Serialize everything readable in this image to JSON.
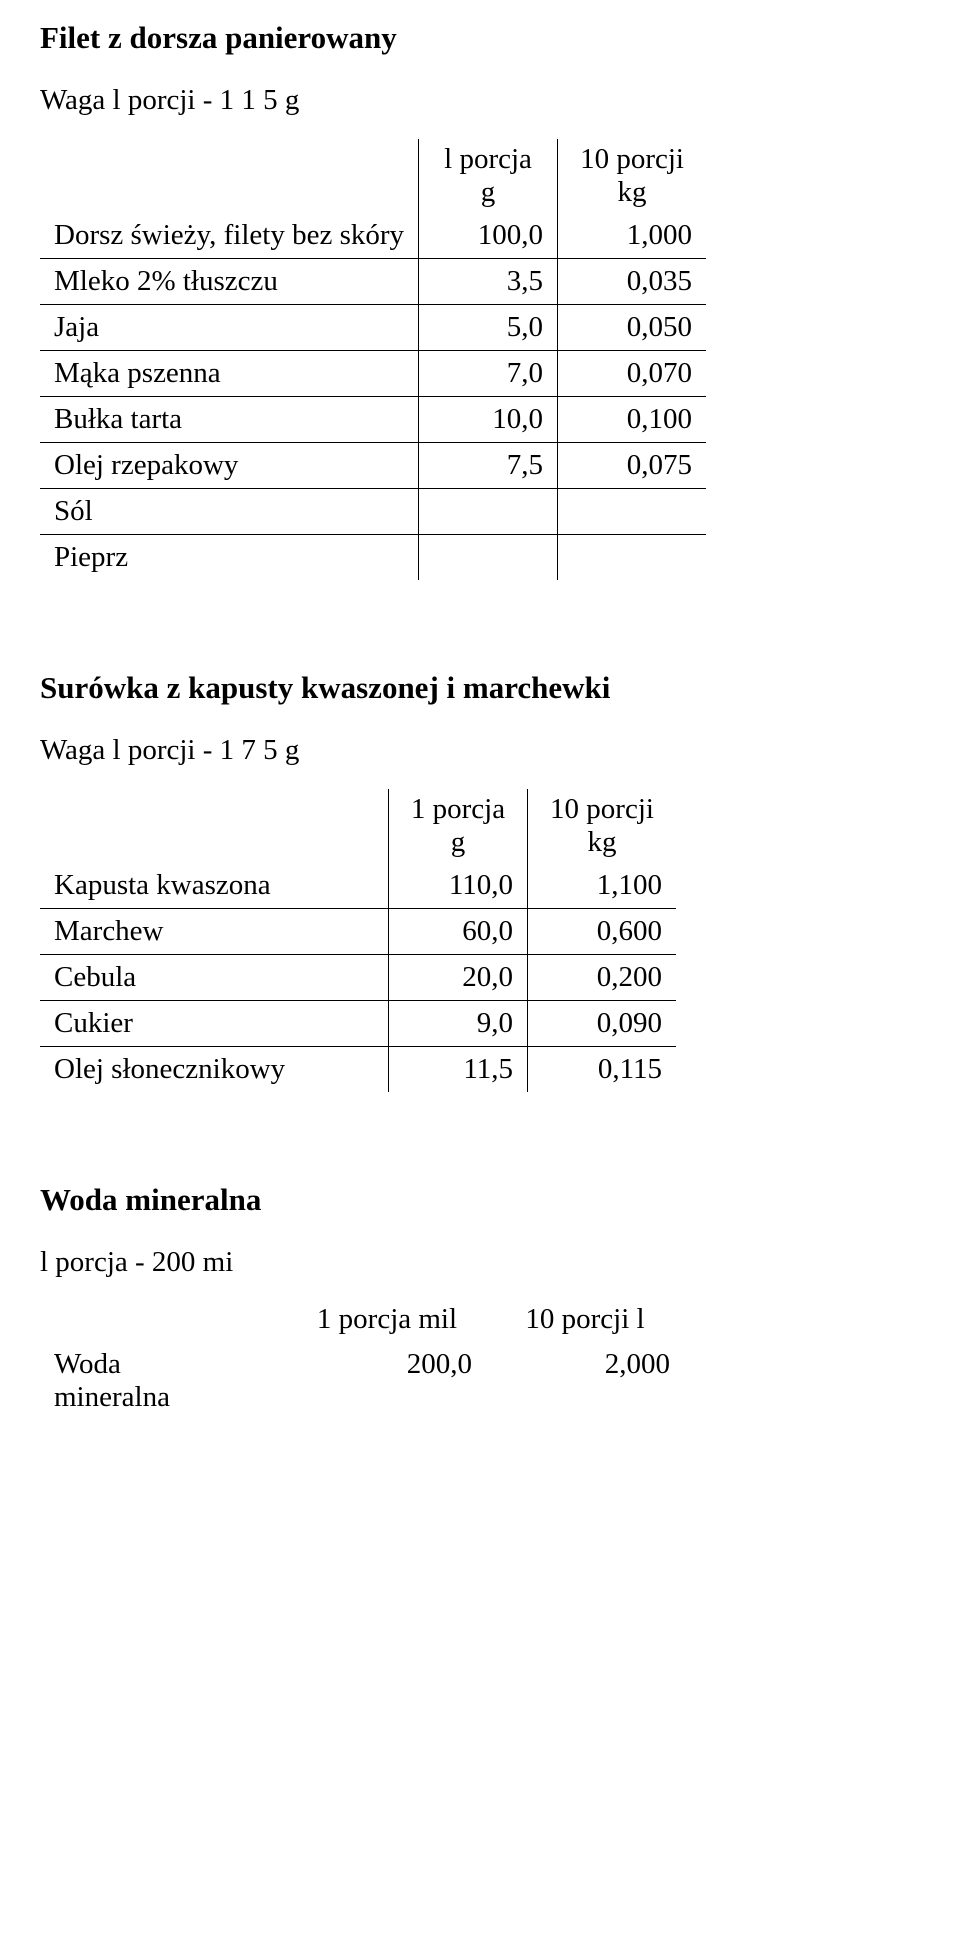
{
  "recipe1": {
    "title": "Filet z dorsza panierowany",
    "portion_weight": "Waga l porcji - 1 1 5 g",
    "header_col1_line1": "l porcja",
    "header_col1_line2": "g",
    "header_col2_line1": "10 porcji",
    "header_col2_line2": "kg",
    "rows": [
      {
        "name": "Dorsz świeży, filety bez skóry",
        "v1": "100,0",
        "v2": "1,000"
      },
      {
        "name": "Mleko 2% tłuszczu",
        "v1": "3,5",
        "v2": "0,035"
      },
      {
        "name": "Jaja",
        "v1": "5,0",
        "v2": "0,050"
      },
      {
        "name": "Mąka pszenna",
        "v1": "7,0",
        "v2": "0,070"
      },
      {
        "name": "Bułka tarta",
        "v1": "10,0",
        "v2": "0,100"
      },
      {
        "name": "Olej rzepakowy",
        "v1": "7,5",
        "v2": "0,075"
      },
      {
        "name": "Sól",
        "v1": "",
        "v2": ""
      },
      {
        "name": "Pieprz",
        "v1": "",
        "v2": ""
      }
    ]
  },
  "recipe2": {
    "title": "Surówka z kapusty kwaszonej i marchewki",
    "portion_weight": "Waga l porcji - 1 7 5 g",
    "header_col1_line1": "1 porcja",
    "header_col1_line2": "g",
    "header_col2_line1": "10 porcji",
    "header_col2_line2": "kg",
    "rows": [
      {
        "name": "Kapusta kwaszona",
        "v1": "110,0",
        "v2": "1,100"
      },
      {
        "name": "Marchew",
        "v1": "60,0",
        "v2": "0,600"
      },
      {
        "name": "Cebula",
        "v1": "20,0",
        "v2": "0,200"
      },
      {
        "name": "Cukier",
        "v1": "9,0",
        "v2": "0,090"
      },
      {
        "name": "Olej słonecznikowy",
        "v1": "11,5",
        "v2": "0,115"
      }
    ]
  },
  "water": {
    "title": "Woda mineralna",
    "sub": "l porcja - 200 mi",
    "header_col1": "1 porcja mil",
    "header_col2": "10 porcji l",
    "row_name1": "Woda",
    "row_name2": "mineralna",
    "v1": "200,0",
    "v2": "2,000"
  }
}
